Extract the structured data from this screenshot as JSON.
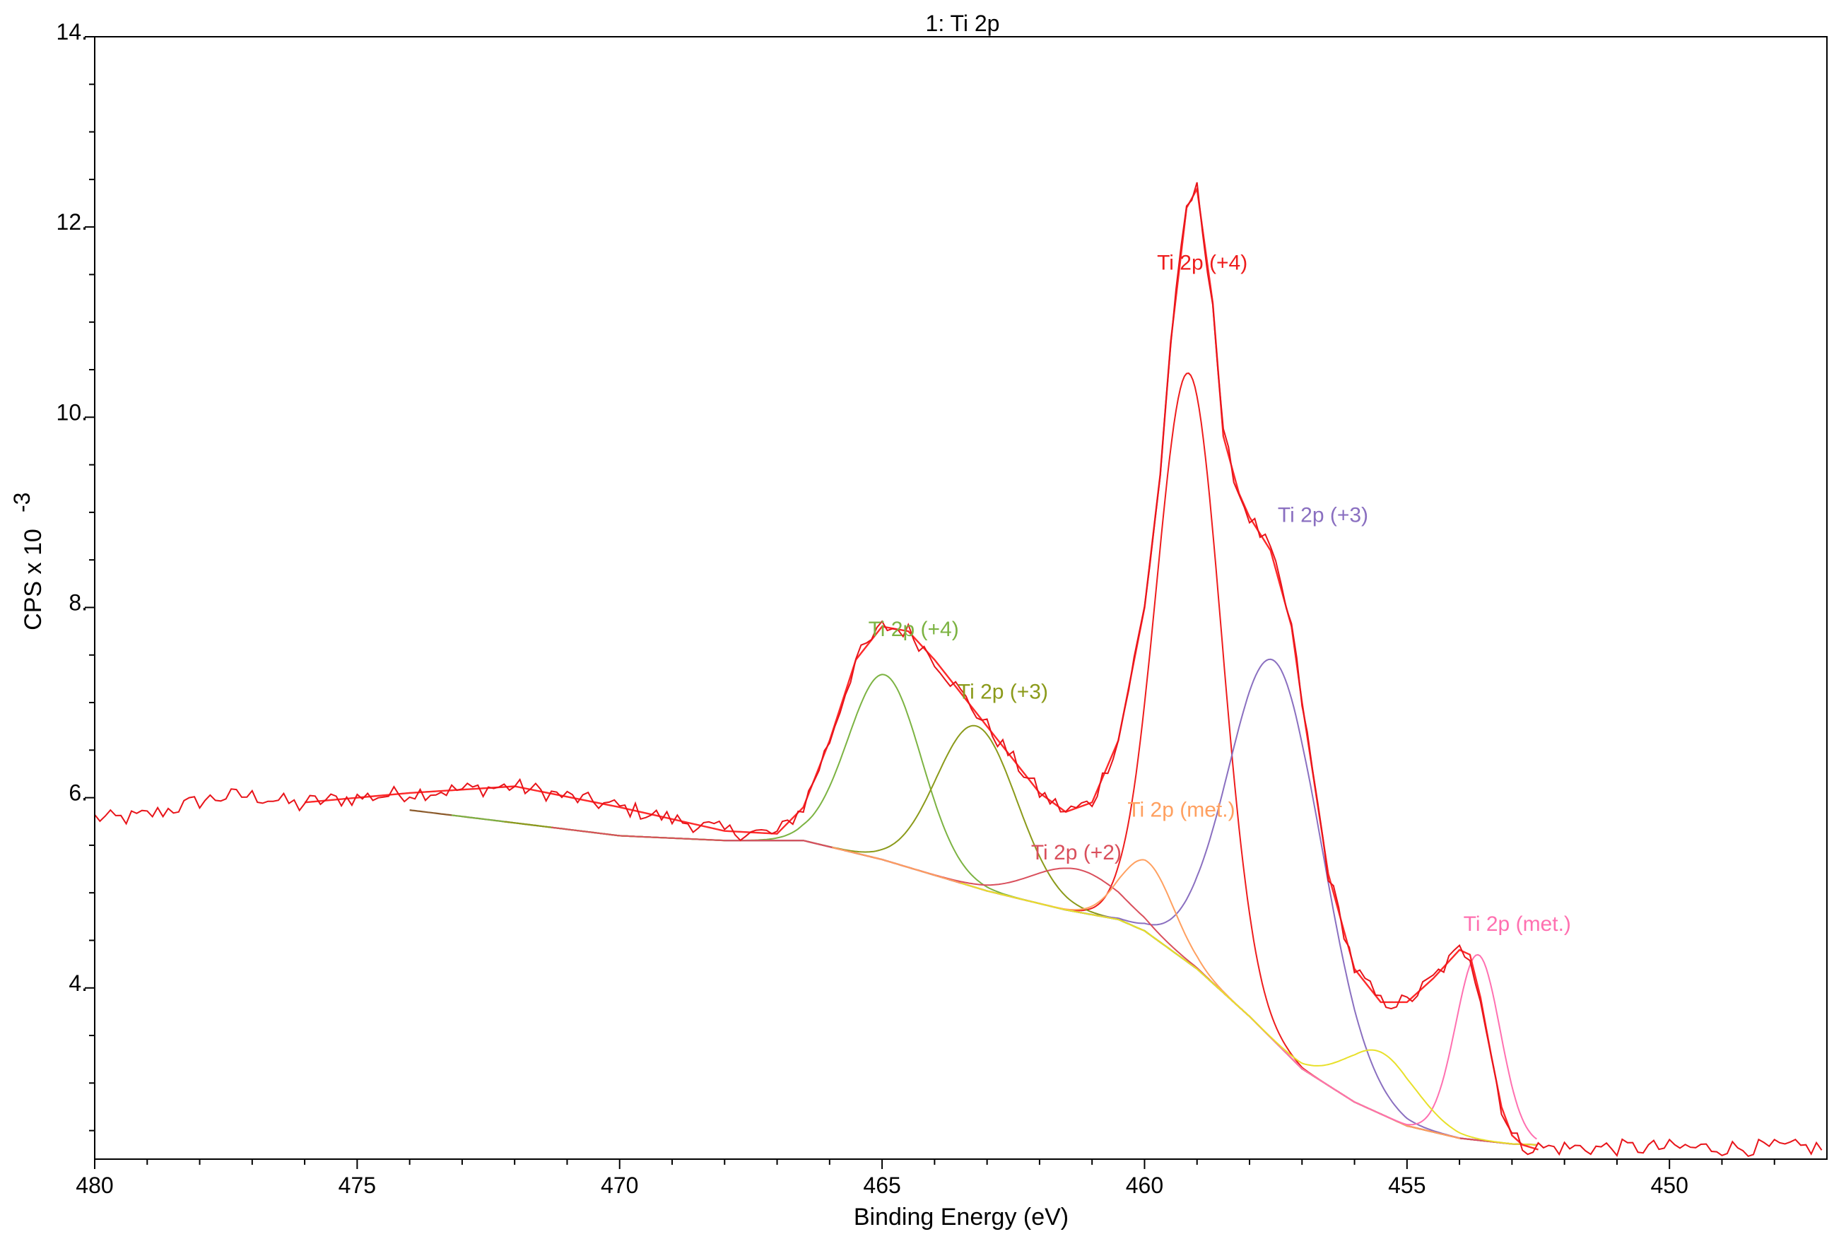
{
  "chart_data": {
    "type": "line",
    "title": "1: Ti 2p",
    "xlabel": "Binding Energy (eV)",
    "ylabel": "CPS x 10",
    "ylabel_exponent": "-3",
    "xlim": [
      480,
      447
    ],
    "ylim": [
      2.2,
      14
    ],
    "x_reversed": true,
    "grid": false,
    "x_ticks": [
      480,
      475,
      470,
      465,
      460,
      455,
      450
    ],
    "x_tick_labels": [
      "480",
      "475",
      "470",
      "465",
      "460",
      "455",
      "450"
    ],
    "y_ticks": [
      4,
      6,
      8,
      10,
      12,
      14
    ],
    "y_tick_labels": [
      "4.",
      "6.",
      "8.",
      "10.",
      "12.",
      "14."
    ],
    "background": {
      "x": [
        474,
        470,
        468,
        466.5,
        465,
        463,
        461.5,
        460.5,
        460,
        459,
        458,
        457,
        456,
        455,
        454,
        453,
        452.5
      ],
      "y": [
        5.87,
        5.6,
        5.55,
        5.55,
        5.35,
        5.02,
        4.82,
        4.72,
        4.6,
        4.2,
        3.7,
        3.15,
        2.8,
        2.55,
        2.42,
        2.36,
        2.35
      ]
    },
    "envelope": {
      "x": [
        476,
        474,
        472,
        470,
        468,
        467,
        466.5,
        466,
        465.5,
        465,
        464.5,
        464,
        463.5,
        463,
        462.5,
        462,
        461.5,
        461,
        460.5,
        460,
        459.7,
        459.5,
        459.2,
        459,
        458.7,
        458.5,
        458.2,
        458,
        457.6,
        457.2,
        457,
        456.5,
        456,
        455.5,
        455,
        454.5,
        454,
        453.8,
        453.6,
        453.4,
        453.2,
        453,
        452.8,
        452.5
      ],
      "y": [
        5.95,
        6.05,
        6.12,
        5.9,
        5.65,
        5.62,
        5.9,
        6.6,
        7.45,
        7.8,
        7.75,
        7.45,
        7.1,
        6.75,
        6.4,
        6.05,
        5.85,
        5.95,
        6.6,
        8.0,
        9.4,
        10.8,
        12.2,
        12.4,
        11.2,
        9.8,
        9.2,
        8.95,
        8.6,
        7.8,
        7.0,
        5.2,
        4.2,
        3.85,
        3.85,
        4.1,
        4.4,
        4.35,
        3.9,
        3.3,
        2.75,
        2.45,
        2.35,
        2.3
      ]
    },
    "raw_noise_amplitude": 0.09,
    "series": [
      {
        "name": "Ti 2p (+4)",
        "color": "#ee1c1c",
        "center": 459.15,
        "height": 6.2,
        "fwhm": 1.45
      },
      {
        "name": "Ti 2p (+4)",
        "color": "#7cb342",
        "center": 464.95,
        "height": 1.95,
        "fwhm": 1.65
      },
      {
        "name": "Ti 2p (+3)",
        "color": "#8b9a1a",
        "center": 463.2,
        "height": 1.7,
        "fwhm": 1.8
      },
      {
        "name": "Ti 2p (+3)",
        "color": "#8a6fc0",
        "center": 457.5,
        "height": 4.0,
        "fwhm": 2.1
      },
      {
        "name": "Ti 2p (+2)",
        "color": "#d94f5c",
        "center": 461.3,
        "height": 0.45,
        "fwhm": 2.0
      },
      {
        "name": "Ti 2p (met.)",
        "color": "#ffa060",
        "center": 459.95,
        "height": 0.75,
        "fwhm": 1.2
      },
      {
        "name": "Ti 2p (met.)",
        "color": "#ff70b0",
        "center": 453.65,
        "height": 1.95,
        "fwhm": 1.0
      },
      {
        "name": "",
        "color": "#e8e02a",
        "center": 455.5,
        "height": 0.65,
        "fwhm": 1.6
      }
    ],
    "annotations": [
      {
        "text": "Ti 2p (+4)",
        "x": 458.9,
        "y": 11.55,
        "color": "#ee1c1c"
      },
      {
        "text": "Ti 2p (+4)",
        "x": 464.4,
        "y": 7.7,
        "color": "#7cb342"
      },
      {
        "text": "Ti 2p (+3)",
        "x": 462.7,
        "y": 7.04,
        "color": "#8b9a1a"
      },
      {
        "text": "Ti 2p (+3)",
        "x": 456.6,
        "y": 8.9,
        "color": "#8a6fc0"
      },
      {
        "text": "Ti 2p (+2)",
        "x": 461.3,
        "y": 5.35,
        "color": "#d94f5c"
      },
      {
        "text": "Ti 2p (met.)",
        "x": 459.3,
        "y": 5.8,
        "color": "#ffa060"
      },
      {
        "text": "Ti 2p (met.)",
        "x": 452.9,
        "y": 4.6,
        "color": "#ff70b0"
      }
    ]
  }
}
